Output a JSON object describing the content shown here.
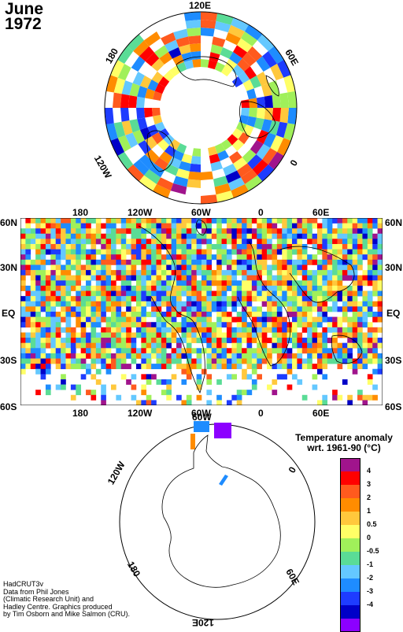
{
  "title": {
    "month": "June",
    "year": "1972"
  },
  "north_polar": {
    "labels": {
      "top": "120E",
      "right": "60E",
      "left": "180",
      "bottom_right": "0",
      "bottom_left": "120W"
    }
  },
  "main_map": {
    "x_ticks": [
      "180",
      "120W",
      "60W",
      "0",
      "60E"
    ],
    "y_ticks": [
      "60N",
      "30N",
      "EQ",
      "30S",
      "60S"
    ]
  },
  "south_polar": {
    "labels": {
      "top": "60W",
      "right": "0",
      "left": "120W",
      "bottom_left": "180",
      "bottom_right": "60E",
      "bottom": "120E"
    }
  },
  "legend": {
    "title_line1": "Temperature anomaly",
    "title_line2": "wrt. 1961-90  (°C)",
    "ticks": [
      "4",
      "3",
      "2",
      "1",
      "0.5",
      "0",
      "-0.5",
      "-1",
      "-2",
      "-3",
      "-4"
    ],
    "colors": [
      "#a0148c",
      "#ff0000",
      "#ff5a1e",
      "#ff8c00",
      "#ffc83c",
      "#ffff66",
      "#a0f05a",
      "#5adc96",
      "#64c8ff",
      "#1e8cff",
      "#1e3cff",
      "#0000c8",
      "#8c00ff"
    ]
  },
  "credits": [
    "HadCRUT3v",
    "Data from Phil Jones",
    "(Climatic Research Unit) and",
    "Hadley Centre.  Graphics produced",
    "by Tim Osborn and Mike Salmon (CRU)."
  ]
}
